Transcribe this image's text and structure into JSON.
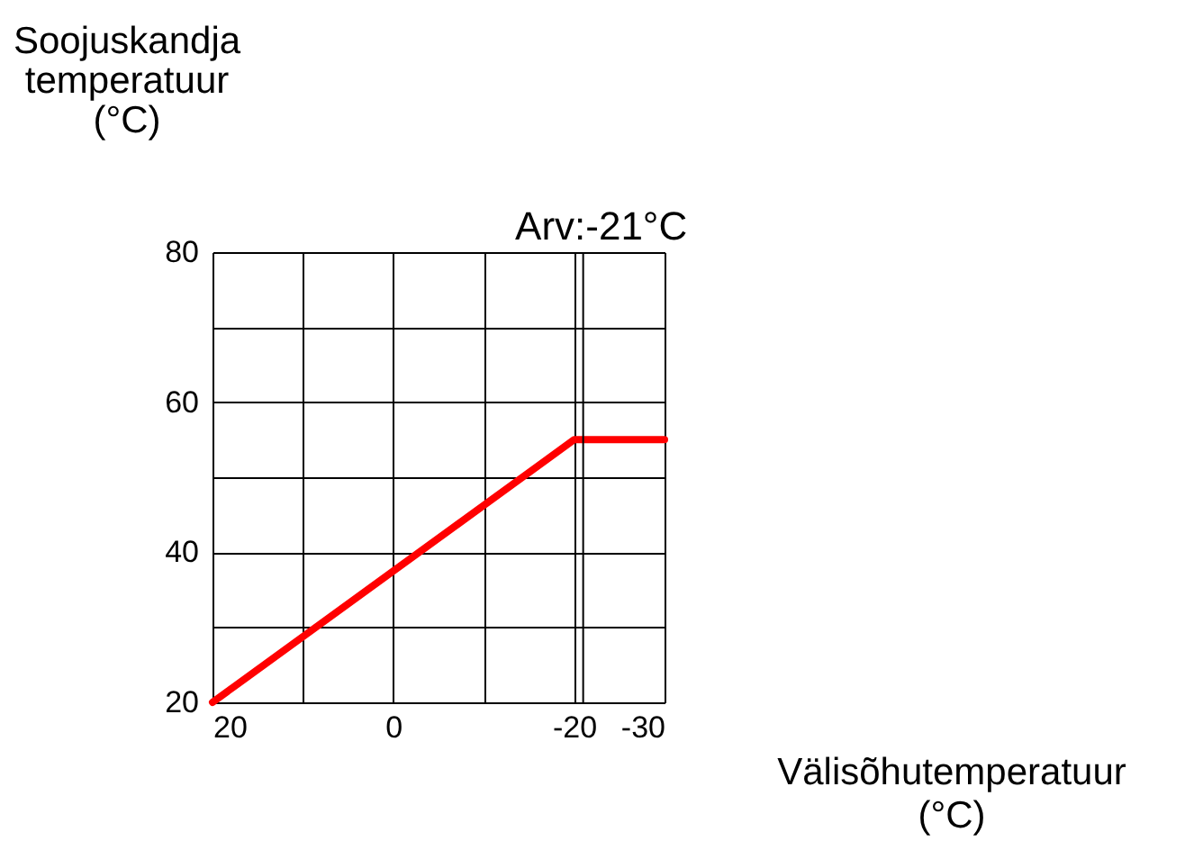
{
  "chart_data": {
    "type": "line",
    "xlabel": "Välisõhutemperatuur (°C)",
    "ylabel": "Soojuskandja temperatuur (°C)",
    "x": [
      20,
      -20,
      -30
    ],
    "series": [
      {
        "color": "#ff0000",
        "values": [
          20,
          55,
          55
        ]
      }
    ],
    "xlim": [
      20,
      -30
    ],
    "xticks": [
      20,
      {
        "value": 10,
        "label": null
      },
      0,
      {
        "value": -10,
        "label": null
      },
      -20,
      -30
    ],
    "ylim": [
      20,
      80
    ],
    "yticks": [
      20,
      {
        "value": 30,
        "label": null
      },
      40,
      {
        "value": 50,
        "label": null
      },
      60,
      {
        "value": 70,
        "label": null
      },
      80
    ],
    "ref_lines": [
      {
        "axis": "x",
        "value": -21,
        "label": "Arv:-21°C",
        "color": "#000000"
      }
    ],
    "grid": true,
    "marker": "none",
    "line_style": "solid"
  }
}
